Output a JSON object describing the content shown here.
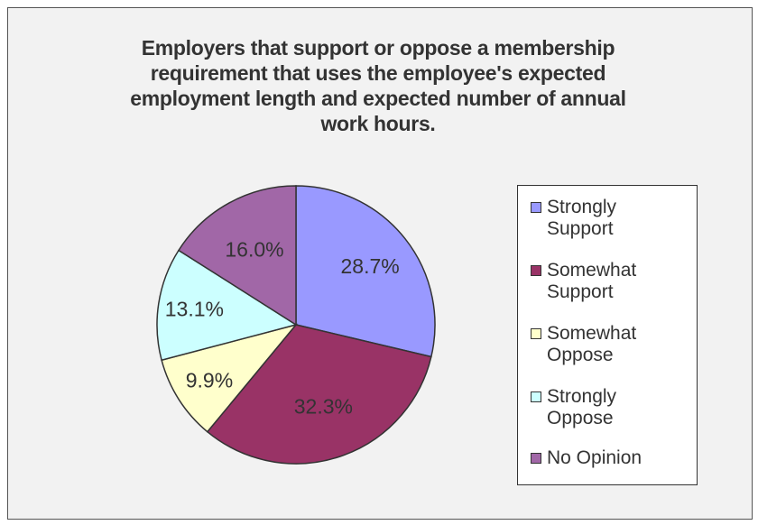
{
  "chart_data": {
    "type": "pie",
    "title": "Employers that support or oppose a membership requirement that uses the employee's expected employment length and expected number of annual work hours.",
    "categories": [
      "Strongly Support",
      "Somewhat Support",
      "Somewhat Oppose",
      "Strongly Oppose",
      "No Opinion"
    ],
    "values": [
      28.7,
      32.3,
      9.9,
      13.1,
      16.0
    ],
    "labels": [
      "28.7%",
      "32.3%",
      "9.9%",
      "13.1%",
      "16.0%"
    ],
    "colors": [
      "#9999ff",
      "#993366",
      "#ffffcc",
      "#ccffff",
      "#a167a7"
    ],
    "legend_lines": [
      [
        "Strongly",
        "Support"
      ],
      [
        "Somewhat",
        "Support"
      ],
      [
        "Somewhat",
        "Oppose"
      ],
      [
        "Strongly",
        "Oppose"
      ],
      [
        "No Opinion"
      ]
    ],
    "legend": "right",
    "start_angle": "12 o'clock",
    "direction": "clockwise"
  }
}
